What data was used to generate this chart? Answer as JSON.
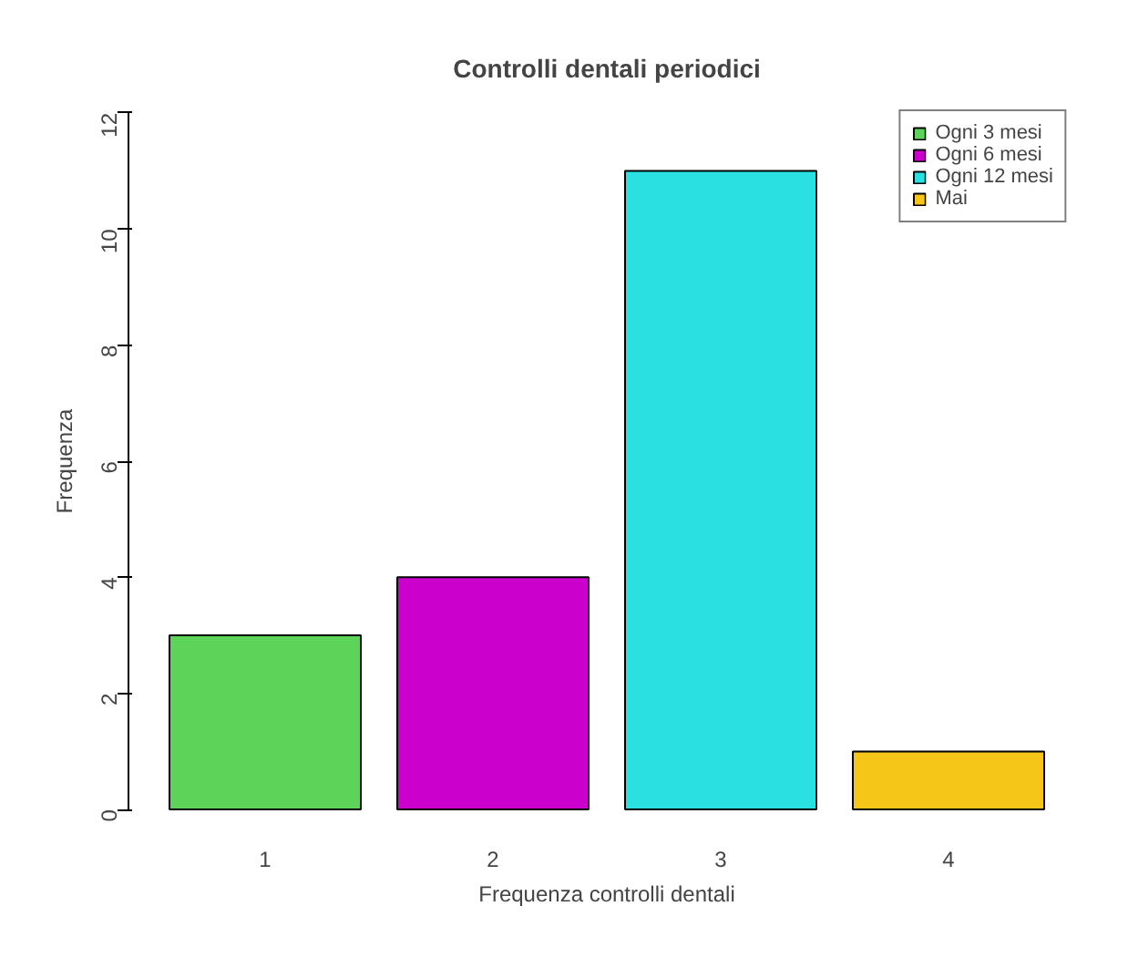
{
  "chart_data": {
    "type": "bar",
    "title": "Controlli dentali periodici",
    "xlabel": "Frequenza controlli dentali",
    "ylabel": "Frequenza",
    "categories": [
      "1",
      "2",
      "3",
      "4"
    ],
    "series": [
      {
        "name": "Ogni 3 mesi",
        "color": "#5ed35a",
        "values": [
          3,
          null,
          null,
          null
        ]
      },
      {
        "name": "Ogni 6 mesi",
        "color": "#cc00cc",
        "values": [
          null,
          4,
          null,
          null
        ]
      },
      {
        "name": "Ogni 12 mesi",
        "color": "#2ae0e0",
        "values": [
          null,
          null,
          11,
          null
        ]
      },
      {
        "name": "Mai",
        "color": "#f5c518",
        "values": [
          null,
          null,
          null,
          1
        ]
      }
    ],
    "ylim": [
      0,
      12
    ],
    "yticks": [
      0,
      2,
      4,
      6,
      8,
      10,
      12
    ],
    "grid": false,
    "legend": "top right"
  }
}
